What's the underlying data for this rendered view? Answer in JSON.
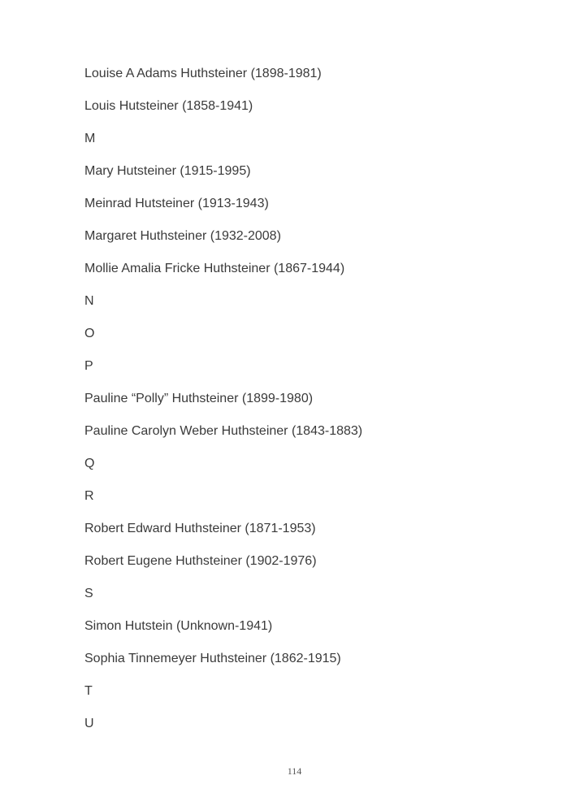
{
  "entries": [
    "Louise A Adams Huthsteiner (1898-1981)",
    "Louis Hutsteiner (1858-1941)",
    "M",
    "Mary Hutsteiner (1915-1995)",
    "Meinrad Hutsteiner (1913-1943)",
    "Margaret Huthsteiner (1932-2008)",
    "Mollie Amalia Fricke Huthsteiner (1867-1944)",
    "N",
    "O",
    "P",
    "Pauline “Polly” Huthsteiner (1899-1980)",
    "Pauline Carolyn Weber Huthsteiner (1843-1883)",
    "Q",
    "R",
    "Robert Edward Huthsteiner (1871-1953)",
    "Robert Eugene Huthsteiner (1902-1976)",
    "S",
    "Simon Hutstein (Unknown-1941)",
    "Sophia Tinnemeyer Huthsteiner (1862-1915)",
    "T",
    "U"
  ],
  "page_number": "114"
}
